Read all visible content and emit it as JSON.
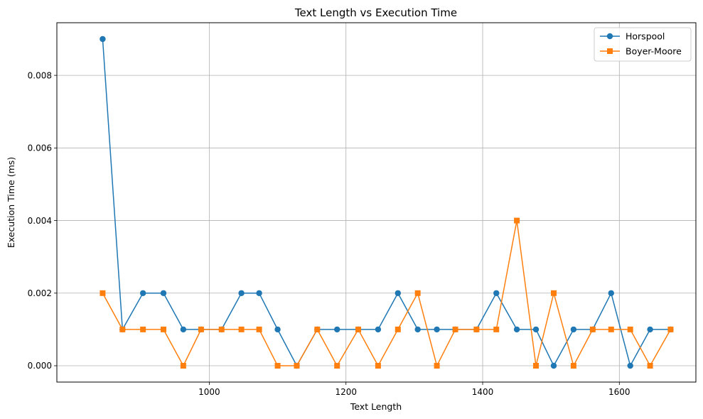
{
  "chart_data": {
    "type": "line",
    "title": "Text Length vs Execution Time",
    "xlabel": "Text Length",
    "ylabel": "Execution Time (ms)",
    "xlim": [
      777,
      1712
    ],
    "ylim": [
      -0.00045,
      0.00945
    ],
    "x_ticks": [
      1000,
      1200,
      1400,
      1600
    ],
    "y_ticks": [
      0.0,
      0.002,
      0.004,
      0.006,
      0.008
    ],
    "x_tick_labels": [
      "1000",
      "1200",
      "1400",
      "1600"
    ],
    "y_tick_labels": [
      "0.000",
      "0.002",
      "0.004",
      "0.006",
      "0.008"
    ],
    "grid": true,
    "legend_position": "top-right",
    "x": [
      844,
      873,
      903,
      933,
      962,
      988,
      1018,
      1047,
      1073,
      1100,
      1128,
      1158,
      1187,
      1218,
      1247,
      1276,
      1305,
      1333,
      1360,
      1391,
      1420,
      1450,
      1478,
      1504,
      1533,
      1561,
      1588,
      1616,
      1645,
      1675
    ],
    "series": [
      {
        "name": "Horspool",
        "color": "#1f77b4",
        "marker": "circle",
        "values": [
          0.009,
          0.001,
          0.002,
          0.002,
          0.001,
          0.001,
          0.001,
          0.002,
          0.002,
          0.001,
          0.0,
          0.001,
          0.001,
          0.001,
          0.001,
          0.002,
          0.001,
          0.001,
          0.001,
          0.001,
          0.002,
          0.001,
          0.001,
          0.0,
          0.001,
          0.001,
          0.002,
          0.0,
          0.001,
          0.001
        ]
      },
      {
        "name": "Boyer-Moore",
        "color": "#ff7f0e",
        "marker": "square",
        "values": [
          0.002,
          0.001,
          0.001,
          0.001,
          0.0,
          0.001,
          0.001,
          0.001,
          0.001,
          0.0,
          0.0,
          0.001,
          0.0,
          0.001,
          0.0,
          0.001,
          0.002,
          0.0,
          0.001,
          0.001,
          0.001,
          0.004,
          0.0,
          0.002,
          0.0,
          0.001,
          0.001,
          0.001,
          0.0,
          0.001
        ]
      }
    ]
  }
}
